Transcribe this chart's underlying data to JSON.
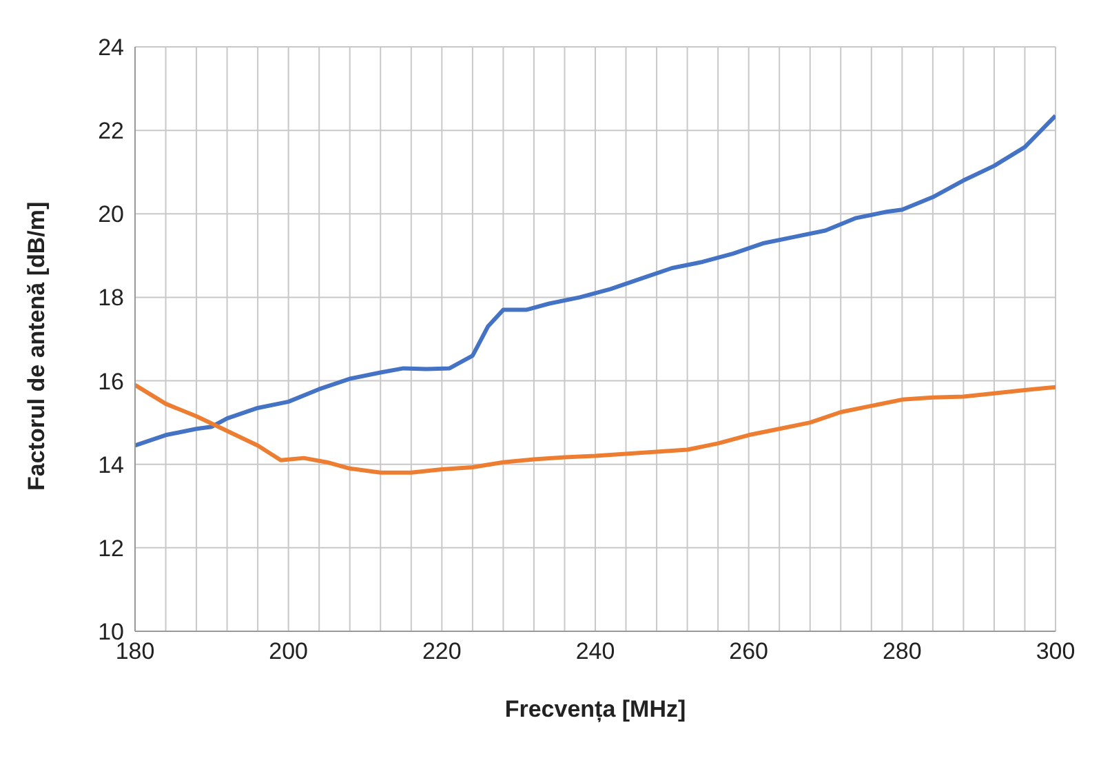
{
  "chart_data": {
    "type": "line",
    "xlabel": "Frecvența [MHz]",
    "ylabel": "Factorul de antenă [dB/m]",
    "xlim": [
      180,
      300
    ],
    "ylim": [
      10,
      24
    ],
    "xticks": [
      180,
      {
        "value": 184,
        "label": null
      },
      {
        "value": 188,
        "label": null
      },
      {
        "value": 192,
        "label": null
      },
      {
        "value": 196,
        "label": null
      },
      200,
      {
        "value": 204,
        "label": null
      },
      {
        "value": 208,
        "label": null
      },
      {
        "value": 212,
        "label": null
      },
      {
        "value": 216,
        "label": null
      },
      220,
      {
        "value": 224,
        "label": null
      },
      {
        "value": 228,
        "label": null
      },
      {
        "value": 232,
        "label": null
      },
      {
        "value": 236,
        "label": null
      },
      240,
      {
        "value": 244,
        "label": null
      },
      {
        "value": 248,
        "label": null
      },
      {
        "value": 252,
        "label": null
      },
      {
        "value": 256,
        "label": null
      },
      260,
      {
        "value": 264,
        "label": null
      },
      {
        "value": 268,
        "label": null
      },
      {
        "value": 272,
        "label": null
      },
      {
        "value": 276,
        "label": null
      },
      280,
      {
        "value": 284,
        "label": null
      },
      {
        "value": 288,
        "label": null
      },
      {
        "value": 292,
        "label": null
      },
      {
        "value": 296,
        "label": null
      },
      300
    ],
    "yticks": [
      10,
      12,
      14,
      16,
      18,
      20,
      22,
      24
    ],
    "grid": true,
    "marker": "none",
    "line_style": "solid",
    "series": [
      {
        "color": "#4472c4",
        "x": [
          180,
          184,
          188,
          190,
          192,
          196,
          200,
          204,
          208,
          212,
          215,
          218,
          221,
          224,
          226,
          228,
          231,
          234,
          238,
          242,
          246,
          250,
          254,
          258,
          262,
          266,
          270,
          274,
          278,
          280,
          284,
          288,
          292,
          296,
          300
        ],
        "values": [
          14.45,
          14.7,
          14.85,
          14.9,
          15.1,
          15.35,
          15.5,
          15.8,
          16.05,
          16.2,
          16.3,
          16.28,
          16.3,
          16.6,
          17.3,
          17.7,
          17.7,
          17.85,
          18.0,
          18.2,
          18.45,
          18.7,
          18.85,
          19.05,
          19.3,
          19.45,
          19.6,
          19.9,
          20.05,
          20.1,
          20.4,
          20.8,
          21.15,
          21.6,
          22.35
        ]
      },
      {
        "color": "#ed7d31",
        "x": [
          180,
          184,
          188,
          192,
          196,
          199,
          202,
          205,
          208,
          212,
          216,
          220,
          224,
          228,
          232,
          236,
          240,
          244,
          248,
          252,
          256,
          260,
          264,
          268,
          272,
          276,
          280,
          284,
          288,
          292,
          296,
          300
        ],
        "values": [
          15.9,
          15.45,
          15.15,
          14.8,
          14.45,
          14.1,
          14.15,
          14.05,
          13.9,
          13.8,
          13.8,
          13.88,
          13.93,
          14.05,
          14.12,
          14.17,
          14.2,
          14.25,
          14.3,
          14.35,
          14.5,
          14.7,
          14.85,
          15.0,
          15.25,
          15.4,
          15.55,
          15.6,
          15.62,
          15.7,
          15.78,
          15.85
        ]
      }
    ]
  }
}
